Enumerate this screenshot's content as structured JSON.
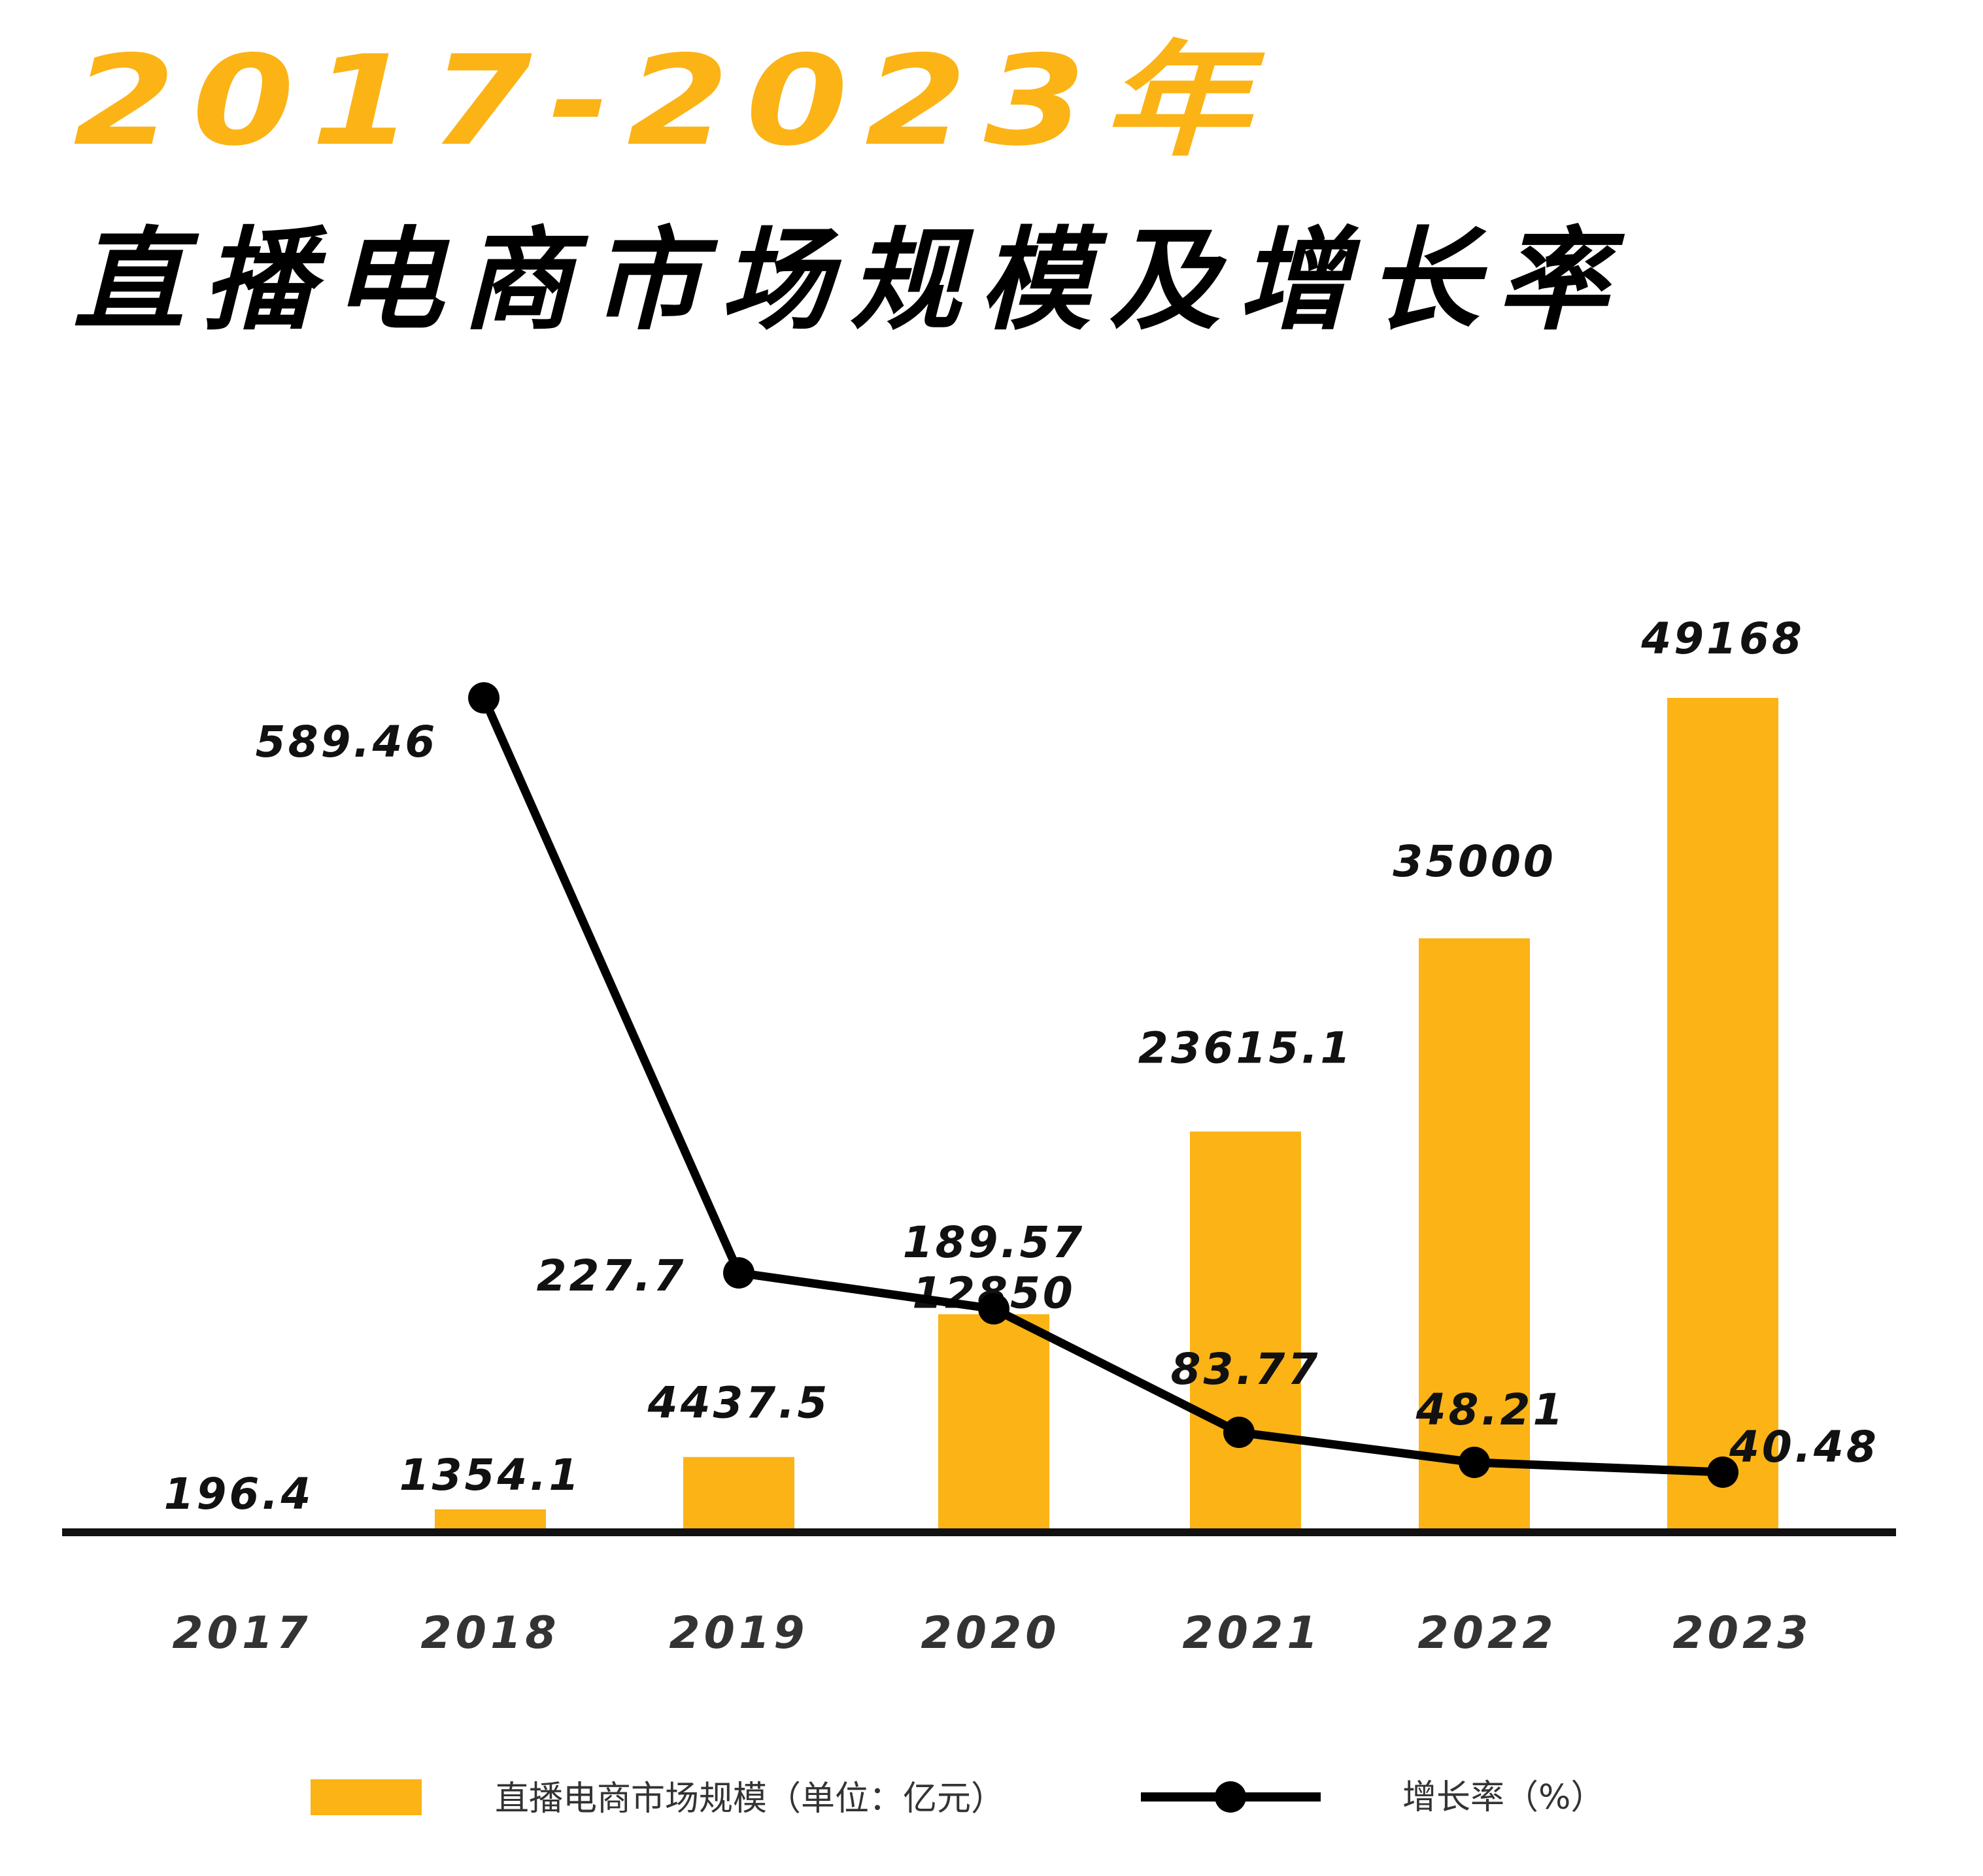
{
  "title": {
    "line1": "2017-2023年",
    "line2": "直播电商市场规模及增长率"
  },
  "colors": {
    "bar": "#fbb316",
    "line": "#000000",
    "title_accent": "#fbb316",
    "axis": "#111111"
  },
  "legend": {
    "bar_label": "直播电商市场规模（单位：亿元）",
    "line_label": "增长率（%）",
    "placement": "bottom"
  },
  "chart_data": {
    "type": "bar",
    "categories": [
      "2017",
      "2018",
      "2019",
      "2020",
      "2021",
      "2022",
      "2023"
    ],
    "series": [
      {
        "name": "直播电商市场规模（单位：亿元）",
        "type": "bar",
        "values": [
          196.4,
          1354.1,
          4437.5,
          12850,
          23615.1,
          35000,
          49168
        ],
        "labels": [
          "196.4",
          "1354.1",
          "4437.5",
          "12850",
          "23615.1",
          "35000",
          "49168"
        ]
      },
      {
        "name": "增长率（%）",
        "type": "line",
        "x": [
          "2018",
          "2019",
          "2020",
          "2021",
          "2022",
          "2023"
        ],
        "values": [
          589.46,
          227.7,
          189.57,
          83.77,
          48.21,
          40.48
        ],
        "labels": [
          "589.46",
          "227.7",
          "189.57",
          "83.77",
          "48.21",
          "40.48"
        ]
      }
    ],
    "ylim_bar": [
      0,
      49168
    ],
    "ylim_line": [
      0,
      589.46
    ],
    "grid": false,
    "legend_position": "bottom"
  }
}
